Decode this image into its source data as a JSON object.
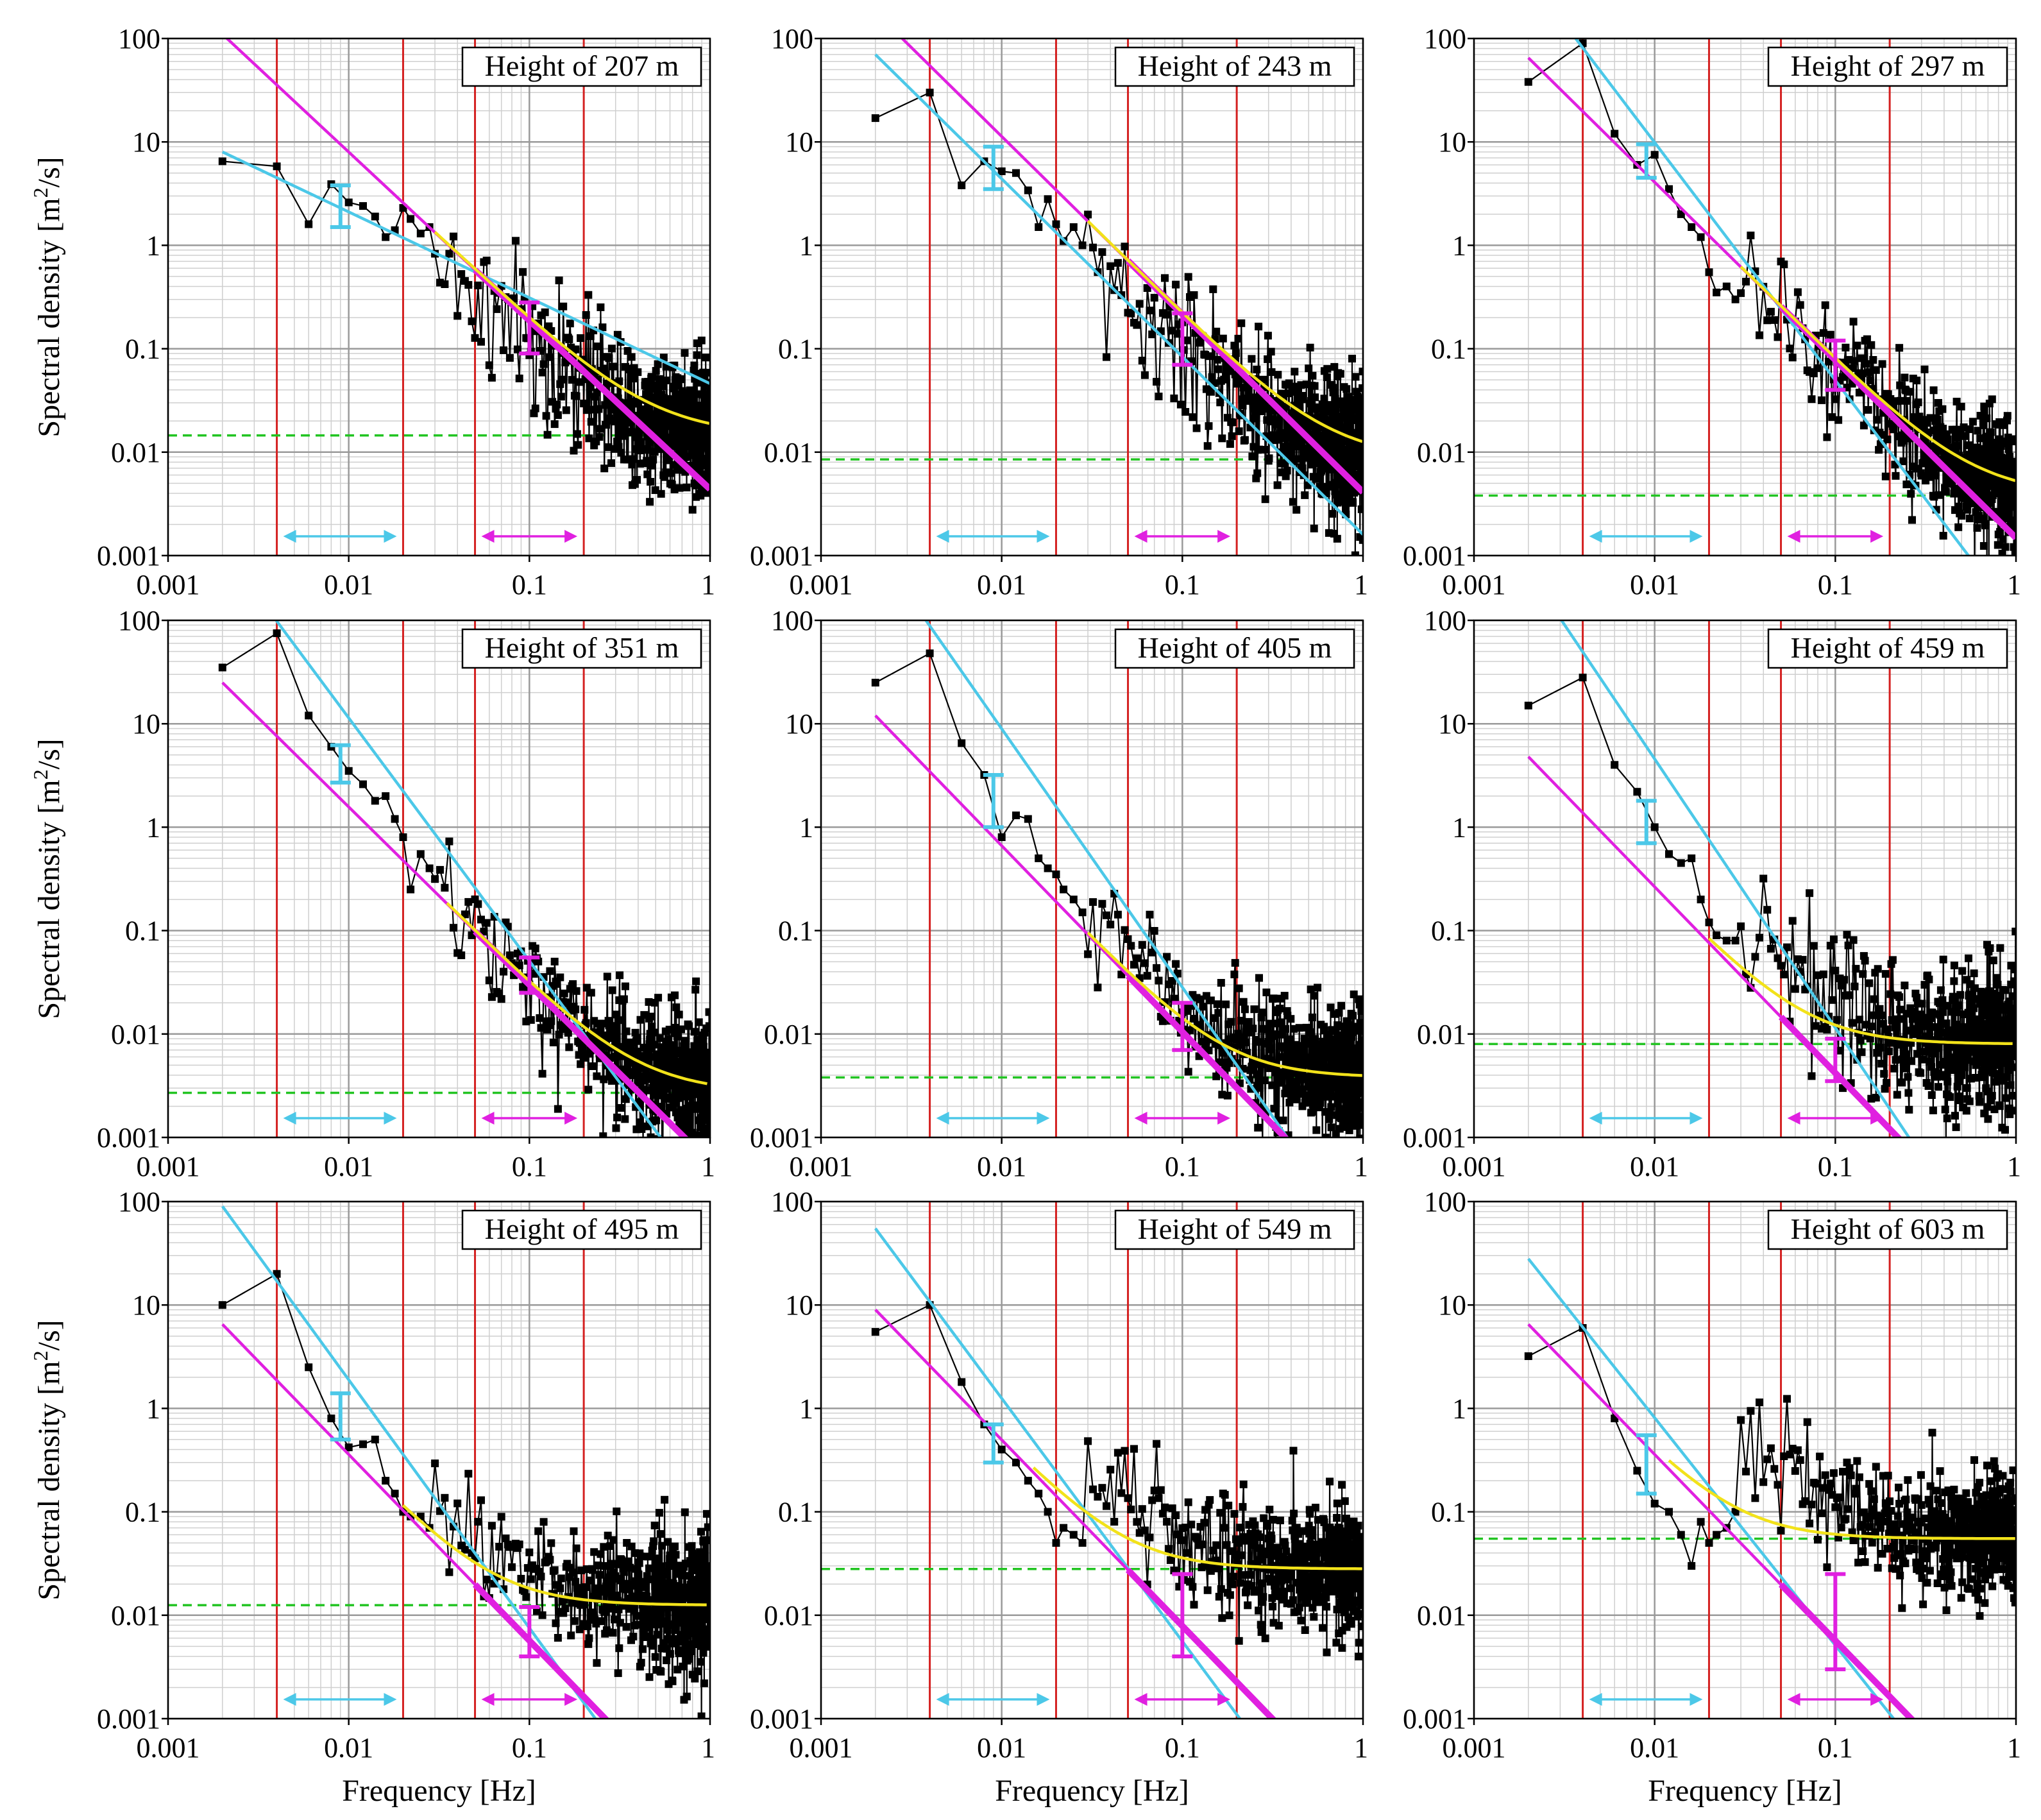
{
  "chart_data": {
    "type": "line",
    "layout": "3x3 grid",
    "xlabel": "Frequency [Hz]",
    "ylabel": "Spectral density [m²/s]",
    "ylabel_main": "Spectral density [m",
    "ylabel_sup": "2",
    "ylabel_tail": "/s]",
    "xscale": "log",
    "yscale": "log",
    "xlim": [
      0.001,
      1
    ],
    "ylim": [
      0.001,
      100
    ],
    "x_ticks": [
      "0.001",
      "0.01",
      "0.1",
      "1"
    ],
    "y_ticks": [
      "0.001",
      "0.01",
      "0.1",
      "1",
      "10",
      "100"
    ],
    "grid": true,
    "colors": {
      "data": "#000000",
      "low_fit": "#4cc8e8",
      "high_fit": "#e020e0",
      "smooth_fit": "#f2e21a",
      "noise_floor": "#22c422",
      "band_lines": "#d42020",
      "grid_major": "#9a9a9a",
      "grid_minor": "#cfcfcf"
    },
    "fit_ranges": {
      "low_hz": [
        0.004,
        0.02
      ],
      "high_hz": [
        0.05,
        0.2
      ],
      "band_lines_hz": [
        0.004,
        0.02,
        0.05,
        0.2
      ]
    },
    "panels": [
      {
        "title": "Height of 207 m",
        "points_low": [
          [
            0.002,
            6.5
          ],
          [
            0.004,
            5.8
          ],
          [
            0.006,
            1.6
          ],
          [
            0.008,
            3.9
          ],
          [
            0.01,
            2.6
          ],
          [
            0.012,
            2.4
          ],
          [
            0.014,
            1.9
          ],
          [
            0.016,
            1.2
          ],
          [
            0.018,
            1.4
          ],
          [
            0.02,
            2.3
          ],
          [
            0.022,
            1.8
          ],
          [
            0.025,
            1.3
          ],
          [
            0.028,
            1.5
          ]
        ],
        "noise_center": {
          "f": 0.1,
          "S": 0.1
        },
        "spread": 0.35,
        "blue_line": {
          "f0": 0.002,
          "S0": 8.0,
          "slope": -0.83
        },
        "magenta_line": {
          "f0": 0.002,
          "S0": 110,
          "slope": -1.63
        },
        "noise_floor": 0.0145,
        "smooth_start": 0.03,
        "blue_error_bar": {
          "f": 0.009,
          "lo": 1.5,
          "hi": 3.8
        },
        "magenta_error_bar": {
          "f": 0.1,
          "lo": 0.09,
          "hi": 0.28
        }
      },
      {
        "title": "Height of 243 m",
        "points_low": [
          [
            0.002,
            17
          ],
          [
            0.004,
            30
          ],
          [
            0.006,
            3.8
          ],
          [
            0.008,
            6.5
          ],
          [
            0.01,
            5.2
          ],
          [
            0.012,
            5.0
          ],
          [
            0.014,
            3.4
          ],
          [
            0.016,
            1.5
          ],
          [
            0.018,
            2.8
          ],
          [
            0.02,
            1.6
          ],
          [
            0.022,
            1.1
          ],
          [
            0.025,
            1.5
          ],
          [
            0.028,
            1.0
          ]
        ],
        "noise_center": {
          "f": 0.1,
          "S": 0.09
        },
        "spread": 0.35,
        "blue_line": {
          "f0": 0.002,
          "S0": 70,
          "slope": -1.72
        },
        "magenta_line": {
          "f0": 0.002,
          "S0": 180,
          "slope": -1.72
        },
        "noise_floor": 0.0085,
        "smooth_start": 0.03,
        "blue_error_bar": {
          "f": 0.009,
          "lo": 3.5,
          "hi": 9.0
        },
        "magenta_error_bar": {
          "f": 0.1,
          "lo": 0.07,
          "hi": 0.22
        }
      },
      {
        "title": "Height of 297 m",
        "points_low": [
          [
            0.002,
            38
          ],
          [
            0.004,
            90
          ],
          [
            0.006,
            12
          ],
          [
            0.008,
            6.0
          ],
          [
            0.01,
            7.5
          ],
          [
            0.012,
            3.5
          ],
          [
            0.014,
            2.0
          ],
          [
            0.016,
            1.5
          ],
          [
            0.018,
            1.2
          ],
          [
            0.02,
            0.55
          ],
          [
            0.022,
            0.35
          ],
          [
            0.025,
            0.4
          ],
          [
            0.028,
            0.3
          ]
        ],
        "noise_center": {
          "f": 0.1,
          "S": 0.06
        },
        "spread": 0.3,
        "blue_line": {
          "f0": 0.002,
          "S0": 400,
          "slope": -2.3
        },
        "magenta_line": {
          "f0": 0.002,
          "S0": 65,
          "slope": -1.72
        },
        "noise_floor": 0.0038,
        "smooth_start": 0.03,
        "blue_error_bar": {
          "f": 0.009,
          "lo": 4.5,
          "hi": 9.5
        },
        "magenta_error_bar": {
          "f": 0.1,
          "lo": 0.04,
          "hi": 0.12
        }
      },
      {
        "title": "Height of 351 m",
        "points_low": [
          [
            0.002,
            35
          ],
          [
            0.004,
            75
          ],
          [
            0.006,
            12
          ],
          [
            0.008,
            6.0
          ],
          [
            0.01,
            3.5
          ],
          [
            0.012,
            2.6
          ],
          [
            0.014,
            1.8
          ],
          [
            0.016,
            2.0
          ],
          [
            0.018,
            1.2
          ],
          [
            0.02,
            0.8
          ],
          [
            0.022,
            0.25
          ],
          [
            0.025,
            0.55
          ],
          [
            0.028,
            0.4
          ]
        ],
        "noise_center": {
          "f": 0.1,
          "S": 0.025
        },
        "spread": 0.32,
        "blue_line": {
          "f0": 0.002,
          "S0": 500,
          "slope": -2.35
        },
        "magenta_line": {
          "f0": 0.002,
          "S0": 25,
          "slope": -1.72
        },
        "noise_floor": 0.0027,
        "smooth_start": 0.035,
        "blue_error_bar": {
          "f": 0.009,
          "lo": 2.7,
          "hi": 6.2
        },
        "magenta_error_bar": {
          "f": 0.1,
          "lo": 0.025,
          "hi": 0.055
        }
      },
      {
        "title": "Height of 405 m",
        "points_low": [
          [
            0.002,
            25
          ],
          [
            0.004,
            48
          ],
          [
            0.006,
            6.5
          ],
          [
            0.008,
            3.2
          ],
          [
            0.01,
            0.8
          ],
          [
            0.012,
            1.3
          ],
          [
            0.014,
            1.2
          ],
          [
            0.016,
            0.5
          ],
          [
            0.018,
            0.4
          ],
          [
            0.02,
            0.35
          ],
          [
            0.022,
            0.25
          ],
          [
            0.025,
            0.2
          ],
          [
            0.028,
            0.15
          ]
        ],
        "noise_center": {
          "f": 0.1,
          "S": 0.015
        },
        "spread": 0.32,
        "blue_line": {
          "f0": 0.002,
          "S0": 500,
          "slope": -2.5
        },
        "magenta_line": {
          "f0": 0.002,
          "S0": 12,
          "slope": -1.8
        },
        "noise_floor": 0.0038,
        "smooth_start": 0.03,
        "blue_error_bar": {
          "f": 0.009,
          "lo": 1.0,
          "hi": 3.2
        },
        "magenta_error_bar": {
          "f": 0.1,
          "lo": 0.007,
          "hi": 0.02
        }
      },
      {
        "title": "Height of 459 m",
        "points_low": [
          [
            0.002,
            15
          ],
          [
            0.004,
            28
          ],
          [
            0.006,
            4.0
          ],
          [
            0.008,
            2.2
          ],
          [
            0.01,
            1.0
          ],
          [
            0.012,
            0.55
          ],
          [
            0.014,
            0.45
          ],
          [
            0.016,
            0.5
          ],
          [
            0.018,
            0.2
          ],
          [
            0.02,
            0.12
          ],
          [
            0.022,
            0.09
          ],
          [
            0.025,
            0.08
          ],
          [
            0.028,
            0.08
          ]
        ],
        "noise_center": {
          "f": 0.1,
          "S": 0.012
        },
        "spread": 0.35,
        "blue_line": {
          "f0": 0.002,
          "S0": 300,
          "slope": -2.6
        },
        "magenta_line": {
          "f0": 0.002,
          "S0": 4.8,
          "slope": -1.8
        },
        "noise_floor": 0.008,
        "smooth_start": 0.02,
        "blue_error_bar": {
          "f": 0.009,
          "lo": 0.7,
          "hi": 1.8
        },
        "magenta_error_bar": {
          "f": 0.1,
          "lo": 0.0035,
          "hi": 0.009
        }
      },
      {
        "title": "Height of 495 m",
        "points_low": [
          [
            0.002,
            10
          ],
          [
            0.004,
            20
          ],
          [
            0.006,
            2.5
          ],
          [
            0.008,
            0.8
          ],
          [
            0.01,
            0.42
          ],
          [
            0.012,
            0.45
          ],
          [
            0.014,
            0.5
          ],
          [
            0.016,
            0.2
          ],
          [
            0.018,
            0.15
          ],
          [
            0.02,
            0.1
          ],
          [
            0.022,
            0.09
          ],
          [
            0.025,
            0.09
          ],
          [
            0.028,
            0.07
          ]
        ],
        "noise_center": {
          "f": 0.1,
          "S": 0.014
        },
        "spread": 0.32,
        "blue_line": {
          "f0": 0.002,
          "S0": 90,
          "slope": -2.4
        },
        "magenta_line": {
          "f0": 0.002,
          "S0": 6.5,
          "slope": -1.8
        },
        "noise_floor": 0.0125,
        "smooth_start": 0.02,
        "blue_error_bar": {
          "f": 0.009,
          "lo": 0.5,
          "hi": 1.4
        },
        "magenta_error_bar": {
          "f": 0.1,
          "lo": 0.004,
          "hi": 0.012
        }
      },
      {
        "title": "Height of 549 m",
        "points_low": [
          [
            0.002,
            5.5
          ],
          [
            0.004,
            10
          ],
          [
            0.006,
            1.8
          ],
          [
            0.008,
            0.7
          ],
          [
            0.01,
            0.4
          ],
          [
            0.012,
            0.3
          ],
          [
            0.014,
            0.2
          ],
          [
            0.016,
            0.15
          ],
          [
            0.018,
            0.1
          ],
          [
            0.02,
            0.05
          ],
          [
            0.022,
            0.07
          ],
          [
            0.025,
            0.06
          ],
          [
            0.028,
            0.05
          ]
        ],
        "noise_center": {
          "f": 0.1,
          "S": 0.03
        },
        "spread": 0.3,
        "blue_line": {
          "f0": 0.002,
          "S0": 55,
          "slope": -2.35
        },
        "magenta_line": {
          "f0": 0.002,
          "S0": 9,
          "slope": -1.8
        },
        "noise_floor": 0.028,
        "smooth_start": 0.015,
        "blue_error_bar": {
          "f": 0.009,
          "lo": 0.3,
          "hi": 0.7
        },
        "magenta_error_bar": {
          "f": 0.1,
          "lo": 0.004,
          "hi": 0.025
        }
      },
      {
        "title": "Height of 603 m",
        "points_low": [
          [
            0.002,
            3.2
          ],
          [
            0.004,
            6.0
          ],
          [
            0.006,
            0.8
          ],
          [
            0.008,
            0.25
          ],
          [
            0.01,
            0.12
          ],
          [
            0.012,
            0.1
          ],
          [
            0.014,
            0.06
          ],
          [
            0.016,
            0.03
          ],
          [
            0.018,
            0.08
          ],
          [
            0.02,
            0.05
          ],
          [
            0.022,
            0.06
          ],
          [
            0.025,
            0.07
          ],
          [
            0.028,
            0.1
          ]
        ],
        "noise_center": {
          "f": 0.1,
          "S": 0.06
        },
        "spread": 0.3,
        "blue_line": {
          "f0": 0.002,
          "S0": 28,
          "slope": -2.2
        },
        "magenta_line": {
          "f0": 0.002,
          "S0": 6.5,
          "slope": -1.8
        },
        "noise_floor": 0.055,
        "smooth_start": 0.012,
        "blue_error_bar": {
          "f": 0.009,
          "lo": 0.15,
          "hi": 0.55
        },
        "magenta_error_bar": {
          "f": 0.1,
          "lo": 0.003,
          "hi": 0.025
        }
      }
    ]
  }
}
